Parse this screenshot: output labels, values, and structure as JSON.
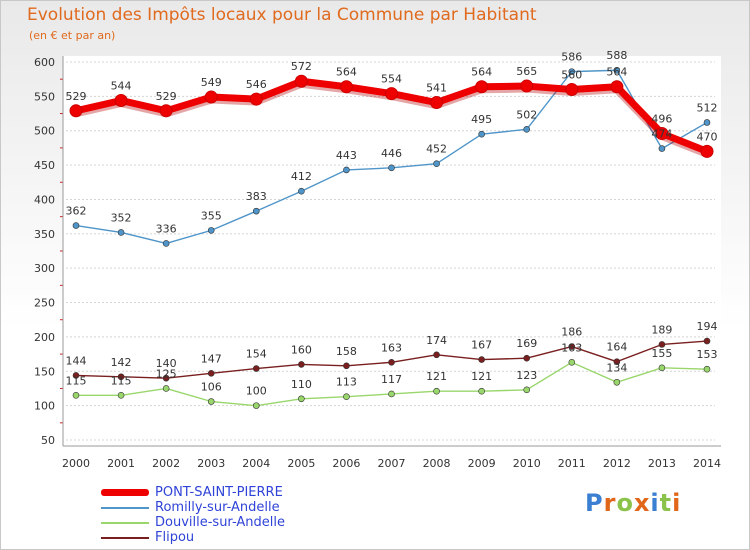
{
  "header": {
    "title": "Evolution des Impôts locaux pour la Commune par Habitant",
    "subtitle": "(en € et par an)"
  },
  "logo": {
    "text": "Proxiti"
  },
  "chart_data": {
    "type": "line",
    "x": [
      "2000",
      "2001",
      "2002",
      "2003",
      "2004",
      "2005",
      "2006",
      "2007",
      "2008",
      "2009",
      "2010",
      "2011",
      "2012",
      "2013",
      "2014"
    ],
    "yticks": [
      "50",
      "100",
      "150",
      "200",
      "250",
      "300",
      "350",
      "400",
      "450",
      "500",
      "550",
      "600"
    ],
    "ylim": [
      50,
      600
    ],
    "grid": "horizontal",
    "legend_position": "bottom-left",
    "series": [
      {
        "name": "PONT-SAINT-PIERRE",
        "color": "#ee0000",
        "values": [
          529,
          544,
          529,
          549,
          546,
          572,
          564,
          554,
          541,
          564,
          565,
          560,
          564,
          496,
          470
        ],
        "labels": [
          "529",
          "544",
          "529",
          "549",
          "546",
          "572",
          "564",
          "554",
          "541",
          "564",
          "565",
          "560",
          "564",
          "496",
          "470"
        ]
      },
      {
        "name": "Romilly-sur-Andelle",
        "color": "#4f95c9",
        "values": [
          362,
          352,
          336,
          355,
          383,
          412,
          443,
          446,
          452,
          495,
          502,
          586,
          588,
          474,
          512
        ],
        "labels": [
          "362",
          "352",
          "336",
          "355",
          "383",
          "412",
          "443",
          "446",
          "452",
          "495",
          "502",
          "586",
          "588",
          "474",
          "512"
        ]
      },
      {
        "name": "Douville-sur-Andelle",
        "color": "#99d66b",
        "values": [
          115,
          115,
          125,
          106,
          100,
          110,
          113,
          117,
          121,
          121,
          123,
          163,
          134,
          155,
          153
        ],
        "labels": [
          "115",
          "115",
          "125",
          "106",
          "100",
          "110",
          "113",
          "117",
          "121",
          "121",
          "123",
          "163",
          "134",
          "155",
          "153"
        ]
      },
      {
        "name": "Flipou",
        "color": "#7a1f1f",
        "values": [
          144,
          142,
          140,
          147,
          154,
          160,
          158,
          163,
          174,
          167,
          169,
          186,
          164,
          189,
          194
        ],
        "labels": [
          "144",
          "142",
          "140",
          "147",
          "154",
          "160",
          "158",
          "163",
          "174",
          "167",
          "169",
          "186",
          "164",
          "189",
          "194"
        ]
      }
    ]
  }
}
